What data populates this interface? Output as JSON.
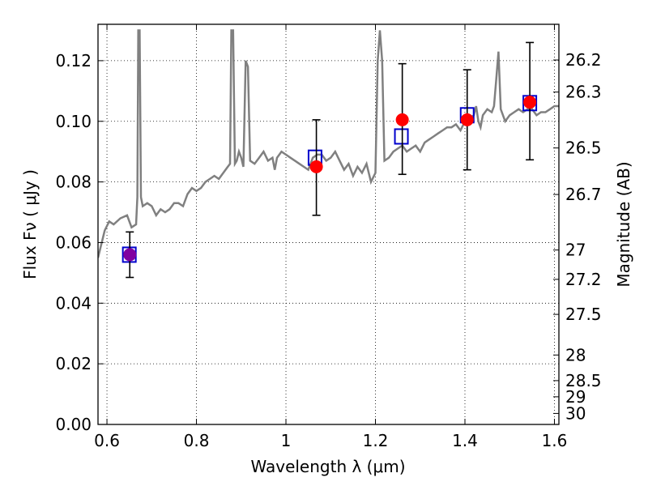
{
  "chart_data": {
    "type": "scatter",
    "title": "",
    "xlabel": "Wavelength  λ (μm)",
    "ylabel": "Flux  Fν  ( μJy )",
    "y2label": "Magnitude (AB)",
    "xlim": [
      0.58,
      1.61
    ],
    "ylim": [
      0.0,
      0.132
    ],
    "grid": true,
    "x_ticks": [
      0.6,
      0.8,
      1.0,
      1.2,
      1.4,
      1.6
    ],
    "x_tick_labels": [
      "0.6",
      "0.8",
      "1",
      "1.2",
      "1.4",
      "1.6"
    ],
    "y_ticks": [
      0.0,
      0.02,
      0.04,
      0.06,
      0.08,
      0.1,
      0.12
    ],
    "y_tick_labels": [
      "0.00",
      "0.02",
      "0.04",
      "0.06",
      "0.08",
      "0.10",
      "0.12"
    ],
    "y2_ticks": [
      26.2,
      26.3,
      26.5,
      26.7,
      27,
      27.2,
      27.5,
      28,
      28.5,
      29,
      30
    ],
    "y2_tick_labels": [
      "26.2",
      "26.3",
      "26.5",
      "26.7",
      "27",
      "27.2",
      "27.5",
      "28",
      "28.5",
      "29",
      "30"
    ],
    "series": [
      {
        "kind": "line",
        "color": "#808080",
        "x": [
          0.58,
          0.595,
          0.605,
          0.615,
          0.63,
          0.645,
          0.655,
          0.665,
          0.668,
          0.67,
          0.673,
          0.676,
          0.68,
          0.69,
          0.7,
          0.71,
          0.72,
          0.73,
          0.74,
          0.75,
          0.76,
          0.77,
          0.78,
          0.79,
          0.8,
          0.81,
          0.82,
          0.83,
          0.84,
          0.85,
          0.86,
          0.87,
          0.875,
          0.878,
          0.882,
          0.886,
          0.89,
          0.895,
          0.9,
          0.905,
          0.91,
          0.915,
          0.92,
          0.93,
          0.94,
          0.95,
          0.96,
          0.97,
          0.975,
          0.98,
          0.99,
          1.0,
          1.01,
          1.02,
          1.03,
          1.04,
          1.05,
          1.06,
          1.07,
          1.08,
          1.09,
          1.1,
          1.11,
          1.12,
          1.13,
          1.14,
          1.15,
          1.16,
          1.17,
          1.18,
          1.19,
          1.2,
          1.205,
          1.21,
          1.215,
          1.22,
          1.23,
          1.24,
          1.25,
          1.26,
          1.27,
          1.28,
          1.29,
          1.3,
          1.31,
          1.32,
          1.33,
          1.34,
          1.35,
          1.36,
          1.37,
          1.38,
          1.39,
          1.4,
          1.41,
          1.42,
          1.425,
          1.43,
          1.435,
          1.44,
          1.45,
          1.46,
          1.465,
          1.47,
          1.475,
          1.48,
          1.49,
          1.5,
          1.51,
          1.52,
          1.53,
          1.54,
          1.55,
          1.56,
          1.57,
          1.58,
          1.59,
          1.6,
          1.61
        ],
        "values": [
          0.055,
          0.064,
          0.067,
          0.066,
          0.068,
          0.069,
          0.065,
          0.066,
          0.075,
          0.13,
          0.13,
          0.075,
          0.072,
          0.073,
          0.072,
          0.069,
          0.071,
          0.07,
          0.071,
          0.073,
          0.073,
          0.072,
          0.076,
          0.078,
          0.077,
          0.078,
          0.08,
          0.081,
          0.082,
          0.081,
          0.083,
          0.085,
          0.086,
          0.13,
          0.13,
          0.086,
          0.087,
          0.09,
          0.088,
          0.085,
          0.12,
          0.118,
          0.087,
          0.086,
          0.088,
          0.09,
          0.087,
          0.088,
          0.084,
          0.088,
          0.09,
          0.089,
          0.088,
          0.087,
          0.086,
          0.085,
          0.084,
          0.088,
          0.089,
          0.089,
          0.087,
          0.088,
          0.09,
          0.087,
          0.084,
          0.086,
          0.082,
          0.085,
          0.083,
          0.086,
          0.08,
          0.083,
          0.12,
          0.13,
          0.12,
          0.087,
          0.088,
          0.09,
          0.091,
          0.092,
          0.09,
          0.091,
          0.092,
          0.09,
          0.093,
          0.094,
          0.095,
          0.096,
          0.097,
          0.098,
          0.098,
          0.099,
          0.097,
          0.1,
          0.101,
          0.102,
          0.105,
          0.1,
          0.098,
          0.102,
          0.104,
          0.103,
          0.105,
          0.114,
          0.123,
          0.104,
          0.1,
          0.102,
          0.103,
          0.104,
          0.103,
          0.104,
          0.104,
          0.102,
          0.103,
          0.103,
          0.104,
          0.105,
          0.105
        ]
      },
      {
        "kind": "squares",
        "color": "#0000cc",
        "x": [
          0.65,
          1.065,
          1.258,
          1.405,
          1.545
        ],
        "values": [
          0.056,
          0.088,
          0.095,
          0.102,
          0.106
        ]
      },
      {
        "kind": "points",
        "color": "#ff0000",
        "x": [
          1.068,
          1.26,
          1.405,
          1.545
        ],
        "values": [
          0.085,
          0.1005,
          0.1005,
          0.1063
        ],
        "err_low": [
          0.016,
          0.018,
          0.0165,
          0.019
        ],
        "err_high": [
          0.0155,
          0.0185,
          0.0165,
          0.0197
        ]
      },
      {
        "kind": "points",
        "color": "#8000a0",
        "x": [
          0.651
        ],
        "values": [
          0.056
        ],
        "err_low": [
          0.0075
        ],
        "err_high": [
          0.0075
        ]
      }
    ]
  }
}
